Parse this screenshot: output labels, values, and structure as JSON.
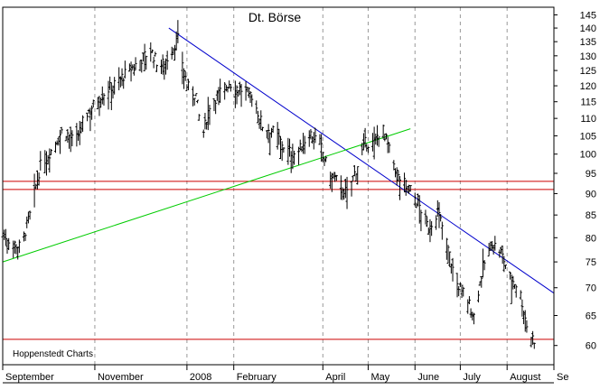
{
  "chart_data": {
    "type": "ohlc",
    "title": "Dt. Börse",
    "source_label": "Hoppenstedt Charts",
    "y_scale": "log",
    "ylim": [
      57,
      148
    ],
    "y_ticks": [
      60,
      65,
      70,
      75,
      80,
      85,
      90,
      95,
      100,
      105,
      110,
      115,
      120,
      125,
      130,
      135,
      140,
      145
    ],
    "x_range_days": [
      0,
      365
    ],
    "x_ticks": [
      {
        "label": "September",
        "day": 0
      },
      {
        "label": "November",
        "day": 61
      },
      {
        "label": "2008",
        "day": 122
      },
      {
        "label": "February",
        "day": 153
      },
      {
        "label": "April",
        "day": 212
      },
      {
        "label": "May",
        "day": 242
      },
      {
        "label": "June",
        "day": 273
      },
      {
        "label": "July",
        "day": 303
      },
      {
        "label": "August",
        "day": 334
      },
      {
        "label": "Se",
        "day": 365
      }
    ],
    "grid": true,
    "price_keypoints": [
      [
        0,
        81
      ],
      [
        6,
        79
      ],
      [
        12,
        78
      ],
      [
        18,
        85
      ],
      [
        25,
        97
      ],
      [
        32,
        101
      ],
      [
        40,
        107
      ],
      [
        48,
        103
      ],
      [
        55,
        111
      ],
      [
        65,
        117
      ],
      [
        75,
        121
      ],
      [
        88,
        127
      ],
      [
        98,
        132
      ],
      [
        104,
        126
      ],
      [
        110,
        130
      ],
      [
        116,
        136
      ],
      [
        122,
        120
      ],
      [
        128,
        117
      ],
      [
        132,
        104
      ],
      [
        137,
        114
      ],
      [
        144,
        118
      ],
      [
        150,
        121
      ],
      [
        157,
        119
      ],
      [
        165,
        117
      ],
      [
        172,
        108
      ],
      [
        180,
        106
      ],
      [
        188,
        101
      ],
      [
        195,
        100
      ],
      [
        203,
        106
      ],
      [
        210,
        103
      ],
      [
        216,
        95
      ],
      [
        222,
        93
      ],
      [
        228,
        90
      ],
      [
        234,
        96
      ],
      [
        240,
        103
      ],
      [
        246,
        103
      ],
      [
        251,
        108
      ],
      [
        256,
        101
      ],
      [
        262,
        94
      ],
      [
        270,
        91
      ],
      [
        276,
        87
      ],
      [
        282,
        82
      ],
      [
        288,
        86
      ],
      [
        294,
        79
      ],
      [
        300,
        71
      ],
      [
        306,
        69
      ],
      [
        312,
        65
      ],
      [
        318,
        74
      ],
      [
        324,
        79
      ],
      [
        330,
        77
      ],
      [
        336,
        72
      ],
      [
        342,
        70
      ],
      [
        348,
        62
      ],
      [
        352,
        61
      ]
    ],
    "trendlines": [
      {
        "color": "#0000cc",
        "from": [
          110,
          140
        ],
        "to": [
          365,
          69
        ]
      },
      {
        "color": "#00cc00",
        "from": [
          0,
          75
        ],
        "to": [
          270,
          107
        ]
      }
    ],
    "horizontal_lines": [
      {
        "color": "#cc0000",
        "y": 61
      },
      {
        "color": "#cc0000",
        "y": 91
      },
      {
        "color": "#cc0000",
        "y": 93
      }
    ],
    "colors": {
      "bars": "#000000",
      "grid": "#999999",
      "frame": "#000000",
      "background": "#ffffff"
    }
  }
}
